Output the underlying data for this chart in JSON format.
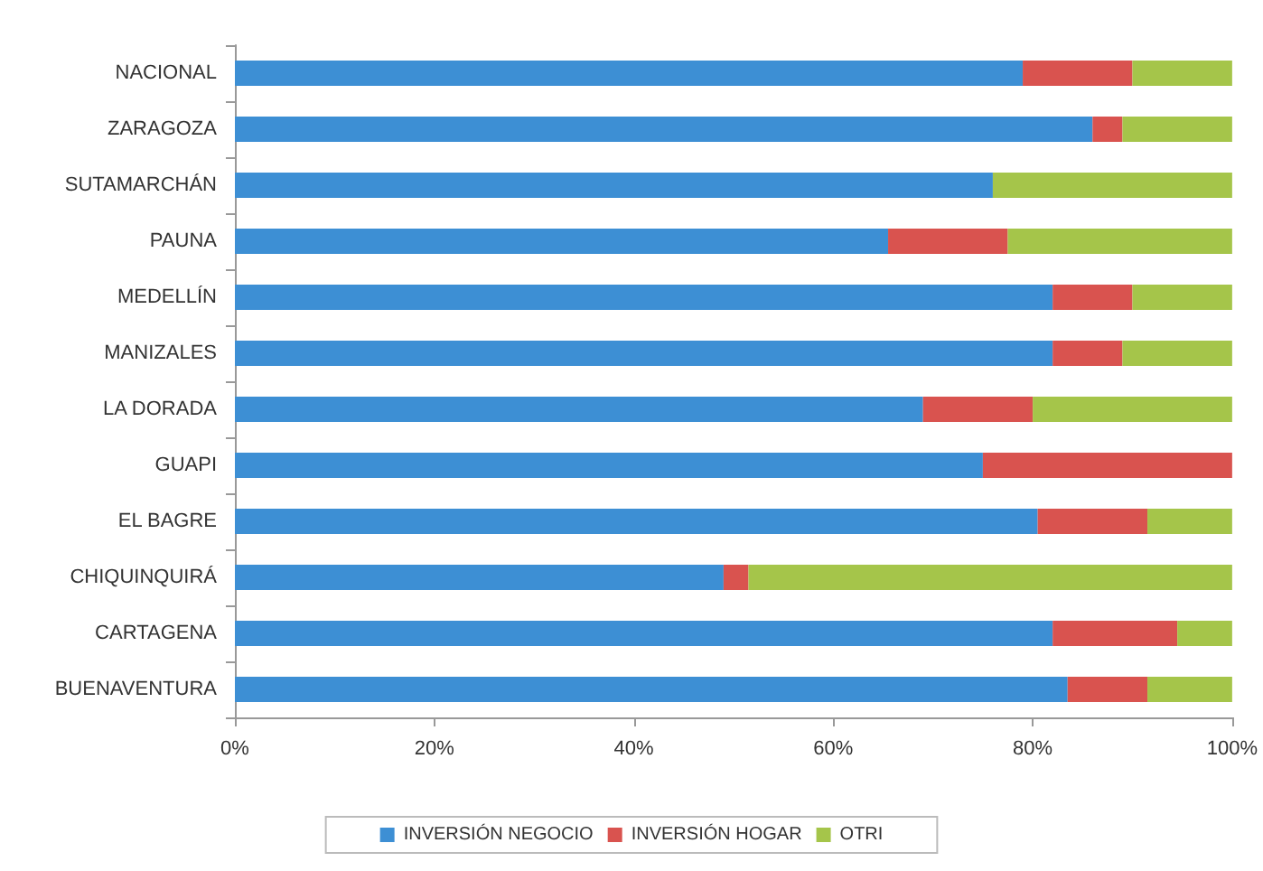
{
  "chart_data": {
    "type": "bar",
    "orientation": "horizontal",
    "stacked": true,
    "categories": [
      "NACIONAL",
      "ZARAGOZA",
      "SUTAMARCHÁN",
      "PAUNA",
      "MEDELLÍN",
      "MANIZALES",
      "LA DORADA",
      "GUAPI",
      "EL BAGRE",
      "CHIQUINQUIRÁ",
      "CARTAGENA",
      "BUENAVENTURA"
    ],
    "series": [
      {
        "name": "INVERSIÓN NEGOCIO",
        "color": "#3d8fd4",
        "values": [
          79,
          86,
          76,
          65.5,
          82,
          82,
          69,
          75,
          80.5,
          49,
          82,
          83.5
        ]
      },
      {
        "name": "INVERSIÓN HOGAR",
        "color": "#d9534f",
        "values": [
          11,
          3,
          0,
          12,
          8,
          7,
          11,
          25,
          11,
          2.5,
          12.5,
          8
        ]
      },
      {
        "name": "OTRI",
        "color": "#a5c54a",
        "values": [
          10,
          11,
          24,
          22.5,
          10,
          11,
          20,
          0,
          8.5,
          48.5,
          5.5,
          8.5
        ]
      }
    ],
    "xlim": [
      0,
      100
    ],
    "xticks": [
      {
        "value": 0,
        "label": "0%"
      },
      {
        "value": 20,
        "label": "20%"
      },
      {
        "value": 40,
        "label": "40%"
      },
      {
        "value": 60,
        "label": "60%"
      },
      {
        "value": 80,
        "label": "80%"
      },
      {
        "value": 100,
        "label": "100%"
      }
    ],
    "grid": false,
    "legend": "bottom"
  }
}
